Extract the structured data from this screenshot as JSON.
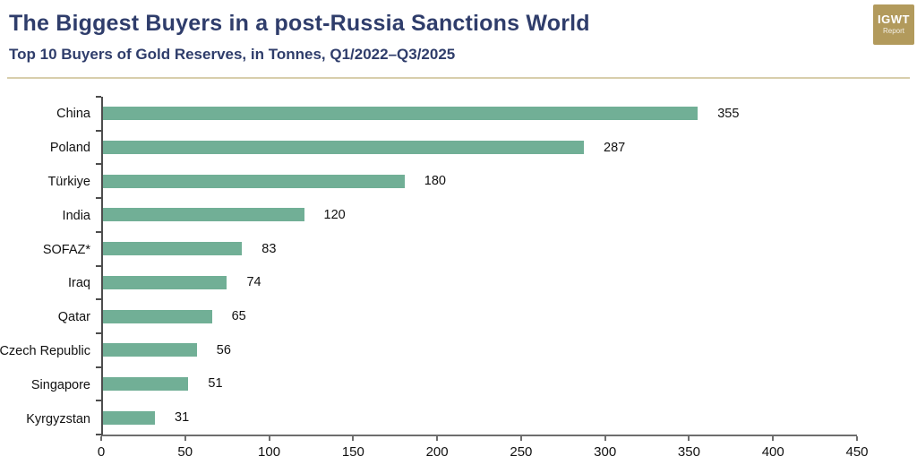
{
  "header": {
    "title": "The Biggest Buyers in a post-Russia Sanctions World",
    "subtitle": "Top 10 Buyers of Gold Reserves, in Tonnes, Q1/2022–Q3/2025",
    "logo": {
      "line1": "IGWT",
      "line2": "Report"
    }
  },
  "colors": {
    "bar": "#71AF96",
    "title": "#2F3D6B",
    "logo_bg": "#B29A5C",
    "divider": "#D8CEAC",
    "category_axis": "#4d4d4d",
    "value_axis": "#6e6e6e",
    "label": "#111111"
  },
  "chart_data": {
    "type": "bar",
    "orientation": "horizontal",
    "title": "The Biggest Buyers in a post-Russia Sanctions World",
    "subtitle": "Top 10 Buyers of Gold Reserves, in Tonnes, Q1/2022–Q3/2025",
    "categories": [
      "China",
      "Poland",
      "Türkiye",
      "India",
      "SOFAZ*",
      "Iraq",
      "Qatar",
      "Czech Republic",
      "Singapore",
      "Kyrgyzstan"
    ],
    "values": [
      355,
      287,
      180,
      120,
      83,
      74,
      65,
      56,
      51,
      31
    ],
    "xlabel": "",
    "ylabel": "",
    "xlim": [
      0,
      450
    ],
    "xticks": [
      0,
      50,
      100,
      150,
      200,
      250,
      300,
      350,
      400,
      450
    ],
    "grid": false,
    "legend": false,
    "value_labels": true,
    "bar_color": "#71AF96"
  }
}
